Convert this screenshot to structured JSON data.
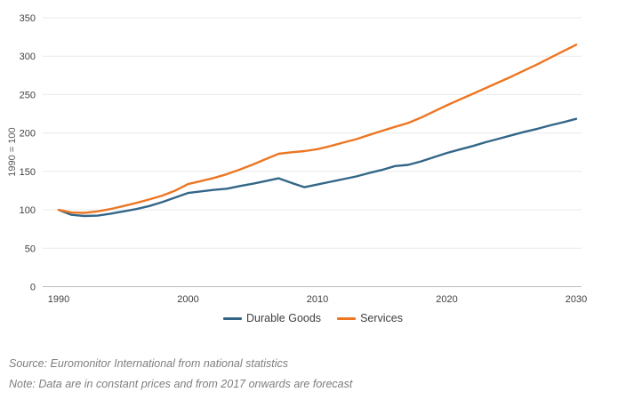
{
  "figure": {
    "y_axis_title": "1990 = 100",
    "source": "Source: Euromonitor International from national statistics",
    "note": "Note: Data are in constant prices and from 2017 onwards are forecast"
  },
  "colors": {
    "durable_goods_line": "#336687",
    "services_line": "#ED7623",
    "gridline": "#EAEAEA",
    "axis_line": "#BDBDBD",
    "tick_label": "#404040",
    "axis_title": "#595959",
    "footnote_text": "#7E7E7E"
  },
  "chart_data": {
    "type": "line",
    "title": "",
    "xlabel": "",
    "ylabel": "1990 = 100",
    "ylim": [
      0,
      350
    ],
    "y_ticks": [
      0,
      50,
      100,
      150,
      200,
      250,
      300,
      350
    ],
    "x_ticks": [
      1990,
      2000,
      2010,
      2020,
      2030
    ],
    "grid": "horizontal",
    "legend_position": "bottom",
    "x": [
      1990,
      1991,
      1992,
      1993,
      1994,
      1995,
      1996,
      1997,
      1998,
      1999,
      2000,
      2001,
      2002,
      2003,
      2004,
      2005,
      2006,
      2007,
      2008,
      2009,
      2010,
      2011,
      2012,
      2013,
      2014,
      2015,
      2016,
      2017,
      2018,
      2019,
      2020,
      2021,
      2022,
      2023,
      2024,
      2025,
      2026,
      2027,
      2028,
      2029,
      2030
    ],
    "series": [
      {
        "name": "Durable Goods",
        "color": "#336687",
        "values": [
          100,
          93.5,
          92,
          92.5,
          95,
          98,
          101,
          105,
          110,
          116,
          122,
          124,
          126,
          127.5,
          131,
          134,
          137.5,
          141,
          135,
          129.5,
          133,
          136.5,
          140,
          143.5,
          148,
          152,
          157,
          158.5,
          163,
          168.5,
          174,
          178.5,
          183,
          188,
          192.5,
          197,
          201.5,
          205.5,
          210,
          214,
          218.5
        ]
      },
      {
        "name": "Services",
        "color": "#ED7623",
        "values": [
          100,
          96.5,
          96,
          98,
          101,
          105,
          109,
          113.5,
          118.5,
          125,
          133.5,
          137.5,
          141.5,
          146.5,
          152.5,
          159,
          166,
          173,
          175,
          176.5,
          179,
          183,
          187.5,
          192,
          197.5,
          203,
          208,
          213,
          220,
          228,
          236,
          243.5,
          251,
          258.5,
          266,
          273.5,
          281.5,
          289.5,
          298,
          306.5,
          315
        ]
      }
    ]
  }
}
